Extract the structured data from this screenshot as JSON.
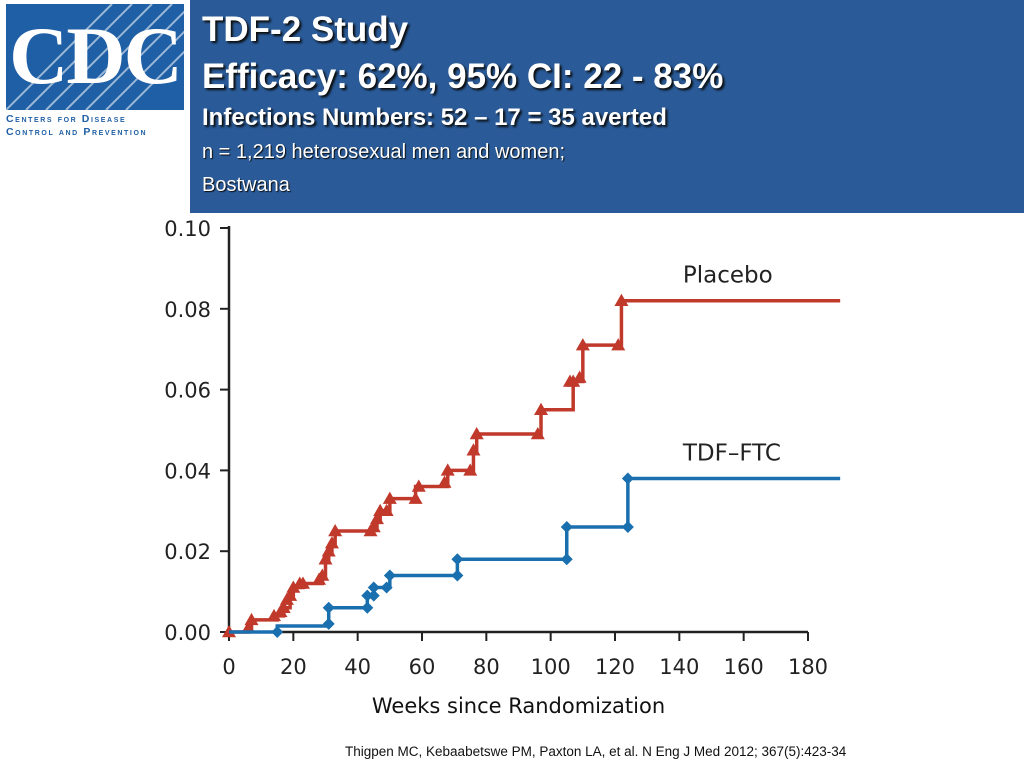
{
  "logo": {
    "letters": "CDC",
    "line1": "Centers for Disease",
    "line2": "Control and Prevention",
    "brand_color": "#1f5fa5"
  },
  "header": {
    "title_line1": "TDF-2 Study",
    "title_line2": "Efficacy: 62%, 95% CI: 22 - 83%",
    "subtitle": "Infections Numbers: 52 – 17 = 35 averted",
    "detail_line1": "n = 1,219 heterosexual men and women;",
    "detail_line2": "Bostwana",
    "band_color": "#2a5b98"
  },
  "chart_data": {
    "type": "line",
    "step": true,
    "xlabel": "Weeks since Randomization",
    "ylabel": "",
    "xlim": [
      0,
      180
    ],
    "ylim": [
      0,
      0.1
    ],
    "x_ticks": [
      "0",
      "20",
      "40",
      "60",
      "80",
      "100",
      "120",
      "140",
      "160",
      "180"
    ],
    "y_ticks": [
      "0.00",
      "0.02",
      "0.04",
      "0.06",
      "0.08",
      "0.10"
    ],
    "grid": false,
    "series": [
      {
        "name": "Placebo",
        "color": "#c0392b",
        "marker": "triangle",
        "points": [
          [
            0,
            0
          ],
          [
            6,
            0.001
          ],
          [
            7,
            0.003
          ],
          [
            15,
            0.004
          ],
          [
            17,
            0.006
          ],
          [
            19,
            0.009
          ],
          [
            20,
            0.011
          ],
          [
            23,
            0.012
          ],
          [
            29,
            0.014
          ],
          [
            30,
            0.018
          ],
          [
            31,
            0.02
          ],
          [
            32,
            0.022
          ],
          [
            33,
            0.025
          ],
          [
            45,
            0.026
          ],
          [
            46,
            0.028
          ],
          [
            47,
            0.03
          ],
          [
            50,
            0.033
          ],
          [
            58,
            0.036
          ],
          [
            68,
            0.04
          ],
          [
            76,
            0.045
          ],
          [
            77,
            0.049
          ],
          [
            97,
            0.055
          ],
          [
            107,
            0.062
          ],
          [
            110,
            0.071
          ],
          [
            122,
            0.082
          ],
          [
            190,
            0.082
          ]
        ],
        "markers": [
          [
            0,
            0
          ],
          [
            6,
            0.001
          ],
          [
            7,
            0.003
          ],
          [
            14,
            0.004
          ],
          [
            16,
            0.005
          ],
          [
            17,
            0.006
          ],
          [
            18,
            0.008
          ],
          [
            19,
            0.009
          ],
          [
            20,
            0.011
          ],
          [
            22,
            0.012
          ],
          [
            23,
            0.012
          ],
          [
            28,
            0.013
          ],
          [
            29,
            0.014
          ],
          [
            30,
            0.018
          ],
          [
            31,
            0.02
          ],
          [
            32,
            0.022
          ],
          [
            33,
            0.025
          ],
          [
            44,
            0.025
          ],
          [
            45,
            0.026
          ],
          [
            46,
            0.028
          ],
          [
            47,
            0.03
          ],
          [
            49,
            0.03
          ],
          [
            50,
            0.033
          ],
          [
            58,
            0.033
          ],
          [
            59,
            0.036
          ],
          [
            67,
            0.037
          ],
          [
            68,
            0.04
          ],
          [
            75,
            0.04
          ],
          [
            76,
            0.045
          ],
          [
            77,
            0.049
          ],
          [
            96,
            0.049
          ],
          [
            97,
            0.055
          ],
          [
            106,
            0.062
          ],
          [
            107,
            0.062
          ],
          [
            109,
            0.063
          ],
          [
            110,
            0.071
          ],
          [
            121,
            0.071
          ],
          [
            122,
            0.082
          ]
        ]
      },
      {
        "name": "TDF–FTC",
        "color": "#1a6fae",
        "marker": "diamond",
        "points": [
          [
            0,
            0
          ],
          [
            15,
            0.0015
          ],
          [
            31,
            0.006
          ],
          [
            43,
            0.009
          ],
          [
            45,
            0.011
          ],
          [
            50,
            0.014
          ],
          [
            71,
            0.018
          ],
          [
            105,
            0.026
          ],
          [
            124,
            0.038
          ],
          [
            190,
            0.038
          ]
        ],
        "markers": [
          [
            15,
            0
          ],
          [
            31,
            0.002
          ],
          [
            31,
            0.006
          ],
          [
            43,
            0.006
          ],
          [
            43,
            0.009
          ],
          [
            45,
            0.009
          ],
          [
            45,
            0.011
          ],
          [
            49,
            0.011
          ],
          [
            50,
            0.014
          ],
          [
            71,
            0.014
          ],
          [
            71,
            0.018
          ],
          [
            105,
            0.018
          ],
          [
            105,
            0.026
          ],
          [
            124,
            0.026
          ],
          [
            124,
            0.038
          ]
        ]
      }
    ]
  },
  "citation": "Thigpen MC, Kebaabetswe PM, Paxton LA, et al. N Eng J Med 2012; 367(5):423-34"
}
